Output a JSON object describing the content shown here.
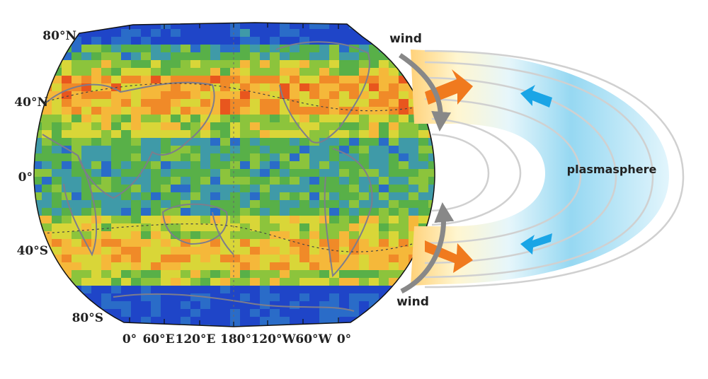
{
  "map": {
    "lat_labels": [
      "80°N",
      "40°N",
      "0°",
      "40°S",
      "80°S"
    ],
    "lon_labels": [
      "0°",
      "60°E",
      "120°E",
      "180°",
      "120°W",
      "60°W",
      "0°"
    ]
  },
  "diagram": {
    "wind_top": "wind",
    "wind_bottom": "wind",
    "plasmasphere": "plasmasphere"
  },
  "colors": {
    "low": "#1f45c8",
    "mid": "#58b048",
    "high": "#f08a28",
    "peak": "#d8261c",
    "plasma": "#8fd6f2",
    "flow_arrow": "#f07a1e",
    "plasma_arrow": "#1aa5e6",
    "wind_arrow": "#888888"
  }
}
